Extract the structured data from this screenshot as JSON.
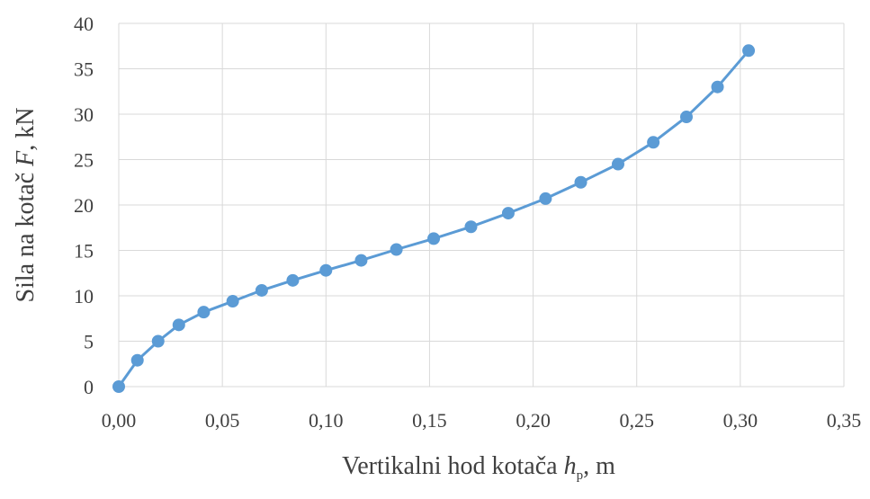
{
  "chart_data": {
    "type": "scatter",
    "xlabel": {
      "prefix": "Vertikalni hod kotača ",
      "var": "h",
      "sub": "p",
      "suffix": ", m"
    },
    "ylabel": {
      "prefix": "Sila na kotač ",
      "var": "F",
      "suffix": ", kN"
    },
    "xlim": [
      0,
      0.35
    ],
    "ylim": [
      0,
      40
    ],
    "x_ticks": [
      "0,00",
      "0,05",
      "0,10",
      "0,15",
      "0,20",
      "0,25",
      "0,30",
      "0,35"
    ],
    "y_ticks": [
      "0",
      "5",
      "10",
      "15",
      "20",
      "25",
      "30",
      "35",
      "40"
    ],
    "grid": true,
    "line_color": "#5b9bd5",
    "series": [
      {
        "x": [
          0.0,
          0.009,
          0.019,
          0.029,
          0.041,
          0.055,
          0.069,
          0.084,
          0.1,
          0.117,
          0.134,
          0.152,
          0.17,
          0.188,
          0.206,
          0.223,
          0.241,
          0.258,
          0.274,
          0.289,
          0.304
        ],
        "y": [
          0.0,
          2.9,
          5.0,
          6.8,
          8.2,
          9.4,
          10.6,
          11.7,
          12.8,
          13.9,
          15.1,
          16.3,
          17.6,
          19.1,
          20.7,
          22.5,
          24.5,
          26.9,
          29.7,
          33.0,
          37.0
        ]
      }
    ]
  }
}
